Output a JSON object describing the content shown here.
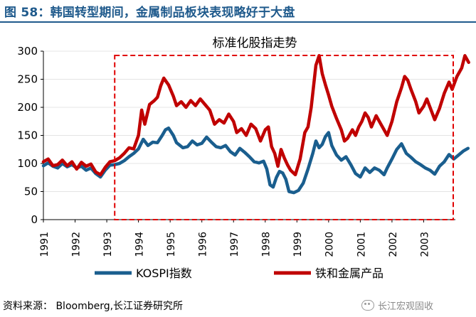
{
  "figure_title": "图 58：韩国转型期间，金属制品板块表现略好于大盘",
  "source": "资料来源：  Bloomberg,长江证券研究所",
  "watermark": "长江宏观固收",
  "colors": {
    "title_blue": "#1f5a8c",
    "kospi": "#1a5e8e",
    "metals": "#c00000",
    "highlight_box": "#e00000"
  },
  "chart_data": {
    "type": "line",
    "title": "标准化股指走势",
    "xlabel": "",
    "ylabel": "",
    "ylim": [
      0,
      300
    ],
    "yticks": [
      0,
      50,
      100,
      150,
      200,
      250,
      300
    ],
    "xlim": [
      1991,
      2004
    ],
    "xticks": [
      "1991",
      "1992",
      "1993",
      "1994",
      "1995",
      "1996",
      "1997",
      "1998",
      "1999",
      "2000",
      "2001",
      "2002",
      "2003"
    ],
    "legend": "bottom",
    "highlight_range": [
      1993.25,
      2004
    ],
    "series": [
      {
        "name": "KOSPI指数",
        "color": "#1a5e8e",
        "points": [
          [
            1991.0,
            96
          ],
          [
            1991.15,
            101
          ],
          [
            1991.3,
            95
          ],
          [
            1991.45,
            92
          ],
          [
            1991.6,
            100
          ],
          [
            1991.75,
            94
          ],
          [
            1991.9,
            98
          ],
          [
            1992.05,
            92
          ],
          [
            1992.2,
            95
          ],
          [
            1992.35,
            88
          ],
          [
            1992.5,
            92
          ],
          [
            1992.65,
            82
          ],
          [
            1992.8,
            76
          ],
          [
            1992.95,
            88
          ],
          [
            1993.1,
            97
          ],
          [
            1993.25,
            98
          ],
          [
            1993.4,
            100
          ],
          [
            1993.55,
            105
          ],
          [
            1993.7,
            112
          ],
          [
            1993.85,
            118
          ],
          [
            1994.0,
            126
          ],
          [
            1994.15,
            143
          ],
          [
            1994.3,
            132
          ],
          [
            1994.45,
            138
          ],
          [
            1994.6,
            137
          ],
          [
            1994.75,
            150
          ],
          [
            1994.85,
            160
          ],
          [
            1994.95,
            163
          ],
          [
            1995.1,
            150
          ],
          [
            1995.2,
            137
          ],
          [
            1995.4,
            128
          ],
          [
            1995.55,
            130
          ],
          [
            1995.7,
            140
          ],
          [
            1995.85,
            133
          ],
          [
            1996.0,
            136
          ],
          [
            1996.15,
            147
          ],
          [
            1996.3,
            138
          ],
          [
            1996.45,
            130
          ],
          [
            1996.6,
            128
          ],
          [
            1996.75,
            132
          ],
          [
            1996.9,
            121
          ],
          [
            1997.05,
            115
          ],
          [
            1997.2,
            127
          ],
          [
            1997.35,
            120
          ],
          [
            1997.5,
            112
          ],
          [
            1997.65,
            103
          ],
          [
            1997.8,
            101
          ],
          [
            1997.95,
            104
          ],
          [
            1998.05,
            90
          ],
          [
            1998.15,
            62
          ],
          [
            1998.25,
            58
          ],
          [
            1998.35,
            75
          ],
          [
            1998.45,
            86
          ],
          [
            1998.55,
            83
          ],
          [
            1998.65,
            72
          ],
          [
            1998.75,
            50
          ],
          [
            1998.9,
            48
          ],
          [
            1999.05,
            52
          ],
          [
            1999.2,
            65
          ],
          [
            1999.35,
            90
          ],
          [
            1999.5,
            118
          ],
          [
            1999.6,
            140
          ],
          [
            1999.7,
            128
          ],
          [
            1999.8,
            134
          ],
          [
            1999.9,
            148
          ],
          [
            2000.0,
            155
          ],
          [
            2000.1,
            132
          ],
          [
            2000.25,
            115
          ],
          [
            2000.4,
            106
          ],
          [
            2000.55,
            112
          ],
          [
            2000.7,
            98
          ],
          [
            2000.85,
            82
          ],
          [
            2001.0,
            76
          ],
          [
            2001.15,
            92
          ],
          [
            2001.3,
            84
          ],
          [
            2001.45,
            92
          ],
          [
            2001.6,
            88
          ],
          [
            2001.75,
            80
          ],
          [
            2001.85,
            92
          ],
          [
            2002.0,
            108
          ],
          [
            2002.15,
            125
          ],
          [
            2002.3,
            135
          ],
          [
            2002.45,
            118
          ],
          [
            2002.6,
            111
          ],
          [
            2002.75,
            103
          ],
          [
            2002.9,
            98
          ],
          [
            2003.05,
            92
          ],
          [
            2003.2,
            88
          ],
          [
            2003.35,
            81
          ],
          [
            2003.5,
            95
          ],
          [
            2003.65,
            103
          ],
          [
            2003.8,
            116
          ],
          [
            2003.95,
            108
          ],
          [
            2004.1,
            115
          ],
          [
            2004.25,
            122
          ],
          [
            2004.4,
            127
          ]
        ]
      },
      {
        "name": "铁和金属产品",
        "color": "#c00000",
        "points": [
          [
            1991.0,
            103
          ],
          [
            1991.15,
            108
          ],
          [
            1991.3,
            96
          ],
          [
            1991.45,
            98
          ],
          [
            1991.6,
            106
          ],
          [
            1991.75,
            96
          ],
          [
            1991.9,
            103
          ],
          [
            1992.05,
            90
          ],
          [
            1992.2,
            102
          ],
          [
            1992.35,
            95
          ],
          [
            1992.5,
            99
          ],
          [
            1992.65,
            85
          ],
          [
            1992.8,
            80
          ],
          [
            1992.95,
            93
          ],
          [
            1993.1,
            103
          ],
          [
            1993.25,
            105
          ],
          [
            1993.4,
            110
          ],
          [
            1993.55,
            118
          ],
          [
            1993.7,
            128
          ],
          [
            1993.85,
            126
          ],
          [
            1994.0,
            150
          ],
          [
            1994.1,
            195
          ],
          [
            1994.2,
            170
          ],
          [
            1994.35,
            205
          ],
          [
            1994.5,
            212
          ],
          [
            1994.6,
            218
          ],
          [
            1994.7,
            238
          ],
          [
            1994.8,
            252
          ],
          [
            1994.95,
            240
          ],
          [
            1995.1,
            220
          ],
          [
            1995.2,
            203
          ],
          [
            1995.35,
            210
          ],
          [
            1995.5,
            200
          ],
          [
            1995.65,
            212
          ],
          [
            1995.8,
            203
          ],
          [
            1995.95,
            215
          ],
          [
            1996.1,
            205
          ],
          [
            1996.25,
            195
          ],
          [
            1996.4,
            170
          ],
          [
            1996.55,
            178
          ],
          [
            1996.7,
            172
          ],
          [
            1996.85,
            188
          ],
          [
            1997.0,
            175
          ],
          [
            1997.1,
            155
          ],
          [
            1997.25,
            162
          ],
          [
            1997.4,
            150
          ],
          [
            1997.55,
            170
          ],
          [
            1997.7,
            162
          ],
          [
            1997.85,
            140
          ],
          [
            1998.0,
            160
          ],
          [
            1998.1,
            165
          ],
          [
            1998.2,
            130
          ],
          [
            1998.3,
            118
          ],
          [
            1998.4,
            95
          ],
          [
            1998.5,
            125
          ],
          [
            1998.6,
            110
          ],
          [
            1998.7,
            98
          ],
          [
            1998.8,
            88
          ],
          [
            1998.95,
            80
          ],
          [
            1999.1,
            108
          ],
          [
            1999.25,
            155
          ],
          [
            1999.35,
            165
          ],
          [
            1999.45,
            200
          ],
          [
            1999.55,
            250
          ],
          [
            1999.6,
            275
          ],
          [
            1999.7,
            292
          ],
          [
            1999.8,
            260
          ],
          [
            1999.9,
            240
          ],
          [
            2000.0,
            222
          ],
          [
            2000.1,
            202
          ],
          [
            2000.25,
            180
          ],
          [
            2000.4,
            160
          ],
          [
            2000.5,
            140
          ],
          [
            2000.6,
            145
          ],
          [
            2000.75,
            160
          ],
          [
            2000.85,
            150
          ],
          [
            2000.95,
            165
          ],
          [
            2001.05,
            175
          ],
          [
            2001.15,
            190
          ],
          [
            2001.25,
            182
          ],
          [
            2001.35,
            165
          ],
          [
            2001.5,
            185
          ],
          [
            2001.65,
            170
          ],
          [
            2001.75,
            160
          ],
          [
            2001.85,
            150
          ],
          [
            2002.0,
            175
          ],
          [
            2002.15,
            210
          ],
          [
            2002.3,
            235
          ],
          [
            2002.4,
            255
          ],
          [
            2002.5,
            248
          ],
          [
            2002.6,
            232
          ],
          [
            2002.75,
            210
          ],
          [
            2002.85,
            190
          ],
          [
            2003.0,
            202
          ],
          [
            2003.1,
            215
          ],
          [
            2003.2,
            200
          ],
          [
            2003.35,
            178
          ],
          [
            2003.5,
            198
          ],
          [
            2003.65,
            225
          ],
          [
            2003.8,
            245
          ],
          [
            2003.9,
            232
          ],
          [
            2004.05,
            255
          ],
          [
            2004.2,
            270
          ],
          [
            2004.3,
            292
          ],
          [
            2004.42,
            280
          ]
        ]
      }
    ]
  }
}
